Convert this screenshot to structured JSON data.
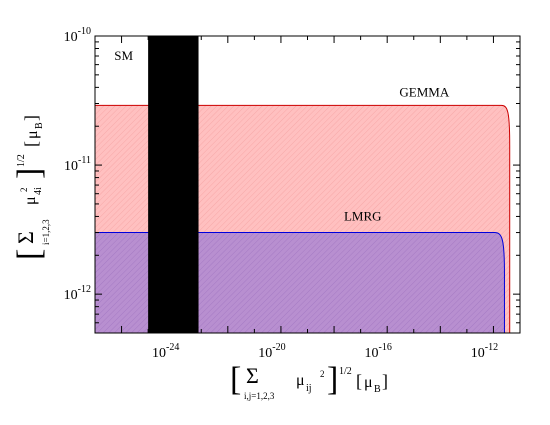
{
  "chart_data": {
    "type": "area",
    "x_scale": "log",
    "y_scale": "log",
    "xlim": [
      1e-27,
      1e-11
    ],
    "ylim": [
      5e-13,
      1e-10
    ],
    "x_ticks": [
      {
        "base": "10",
        "exp": "-24",
        "value": 1e-24
      },
      {
        "base": "10",
        "exp": "-20",
        "value": 1e-20
      },
      {
        "base": "10",
        "exp": "-16",
        "value": 1e-16
      },
      {
        "base": "10",
        "exp": "-12",
        "value": 1e-12
      }
    ],
    "y_ticks": [
      {
        "base": "10",
        "exp": "-10",
        "value": 1e-10
      },
      {
        "base": "10",
        "exp": "-11",
        "value": 1e-11
      },
      {
        "base": "10",
        "exp": "-12",
        "value": 1e-12
      }
    ],
    "regions": [
      {
        "name": "GEMMA",
        "y_limit": 2.9e-11,
        "x_turn": 2e-12,
        "x_end": 4.1e-12,
        "color": "#ffc0c0",
        "edge": "#cc0000"
      },
      {
        "name": "LMRG",
        "y_limit": 3e-12,
        "x_turn": 1.1e-12,
        "x_end": 2.6e-12,
        "color": "#b088cc",
        "edge": "#0000dd"
      }
    ],
    "sm_band": {
      "label": "SM",
      "x_range": [
        1e-25,
        7.9e-24
      ],
      "color": "#000000"
    },
    "xlabel": {
      "sum": "Σ",
      "sub": "i,j=1,2,3",
      "mu": "μ",
      "mu_sub": "ij",
      "mu_sup": "2",
      "power": "1/2",
      "unit": "μ",
      "unit_sub": "B"
    },
    "ylabel": {
      "sum": "Σ",
      "sub": "i=1,2,3",
      "mu": "μ",
      "mu_sub": "4i",
      "mu_sup": "2",
      "power": "1/2",
      "unit": "μ",
      "unit_sub": "B"
    }
  }
}
